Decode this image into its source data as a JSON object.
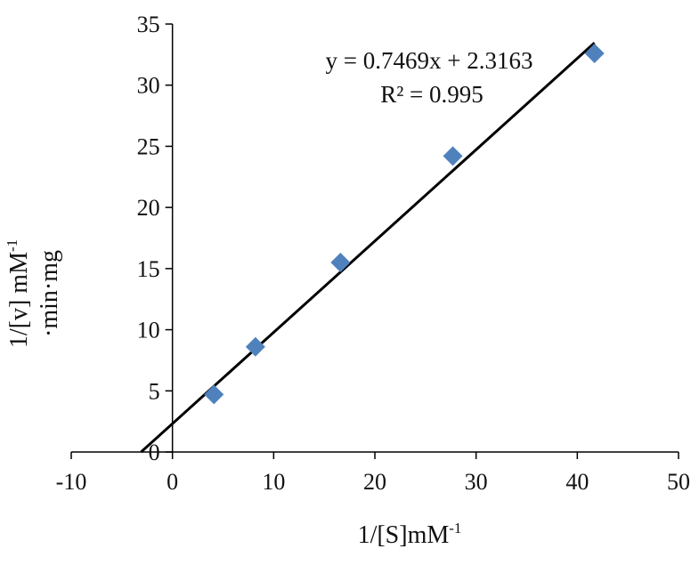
{
  "chart_data": {
    "type": "scatter",
    "title": "",
    "xlabel": "1/[S]mM",
    "xlabel_sup": "-1",
    "ylabel_line1": "1/[v] mM",
    "ylabel_line1_sup": "-1",
    "ylabel_line2": "·min·mg",
    "xlim": [
      -10,
      50
    ],
    "ylim": [
      0,
      35
    ],
    "x_ticks": [
      -10,
      0,
      10,
      20,
      30,
      40,
      50
    ],
    "y_ticks": [
      0,
      5,
      10,
      15,
      20,
      25,
      30,
      35
    ],
    "grid": false,
    "legend": "none",
    "series": [
      {
        "marker": "diamond",
        "color": "#4F81BD",
        "x": [
          4.1,
          8.2,
          16.6,
          27.7,
          41.7
        ],
        "y": [
          4.7,
          8.6,
          15.5,
          24.2,
          32.6
        ]
      }
    ],
    "trendline": {
      "slope": 0.7469,
      "intercept": 2.3163,
      "x_range": [
        -3.1,
        41.7
      ],
      "color": "#000000"
    },
    "annotations": {
      "equation": "y = 0.7469x  + 2.3163",
      "r2_label": "R² = 0.995"
    }
  }
}
